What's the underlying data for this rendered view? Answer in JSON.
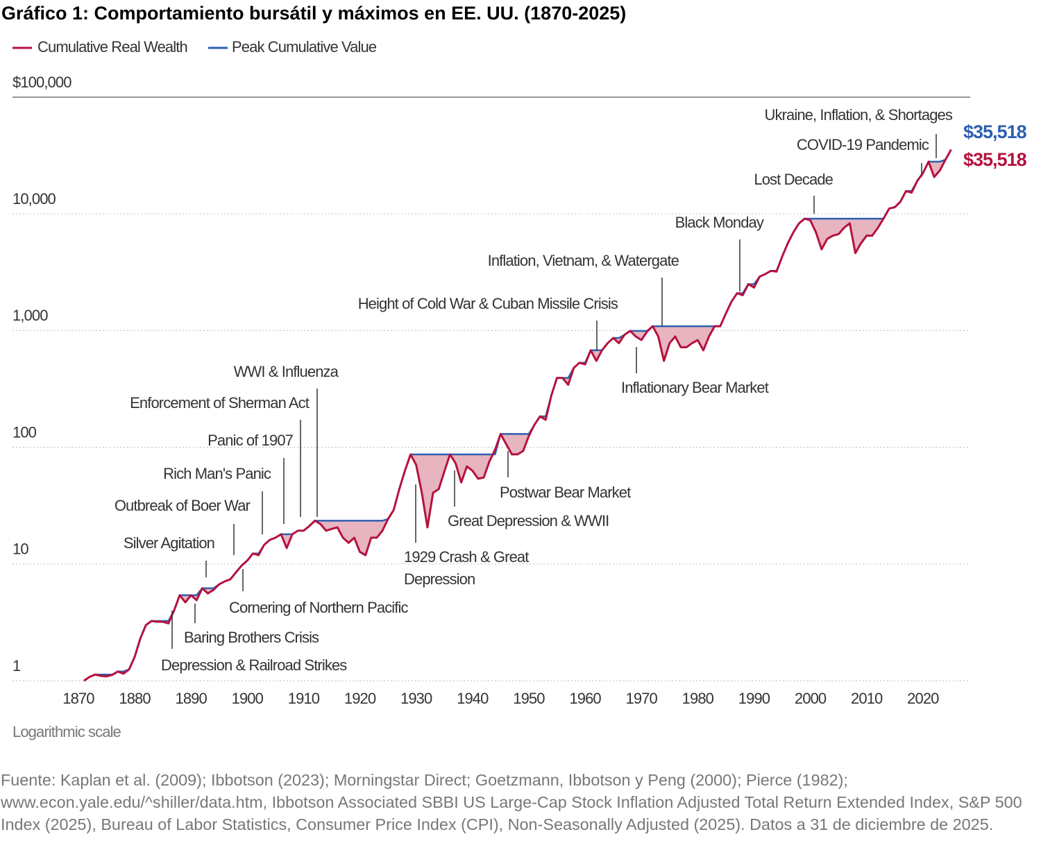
{
  "chart_data": {
    "type": "line",
    "title": "Gráfico 1: Comportamiento bursátil y máximos en EE. UU. (1870-2025)",
    "note": "Logarithmic scale",
    "source": "Fuente: Kaplan et al. (2009); Ibbotson (2023); Morningstar Direct; Goetzmann, Ibbotson y Peng (2000); Pierce (1982); www.econ.yale.edu/^shiller/data.htm, Ibbotson Associated SBBI US Large-Cap Stock Inflation Adjusted Total Return Extended Index, S&P 500 Index (2025), Bureau of Labor Statistics, Consumer Price Index (CPI), Non-Seasonally Adjusted (2025). Datos a 31 de diciembre de 2025.",
    "log_scale": true,
    "grid": true,
    "legend": "top-left",
    "fill_color": "#e7b4c0",
    "xlim": [
      1858.3,
      2028.4
    ],
    "xticks": [
      1870,
      1880,
      1890,
      1900,
      1910,
      1920,
      1930,
      1940,
      1950,
      1960,
      1970,
      1980,
      1990,
      2000,
      2010,
      2020
    ],
    "ylim": [
      1,
      100000
    ],
    "yticks": [
      1,
      10,
      100,
      {
        "value": 1000,
        "label": "1,000"
      },
      {
        "value": 10000,
        "label": "10,000"
      },
      {
        "value": 100000,
        "label": "$100,000"
      }
    ],
    "x": [
      1871,
      1872,
      1873,
      1874,
      1875,
      1876,
      1877,
      1878,
      1879,
      1880,
      1881,
      1882,
      1883,
      1884,
      1885,
      1886,
      1887,
      1888,
      1889,
      1890,
      1891,
      1892,
      1893,
      1894,
      1895,
      1896,
      1897,
      1898,
      1899,
      1900,
      1901,
      1902,
      1903,
      1904,
      1905,
      1906,
      1907,
      1908,
      1909,
      1910,
      1911,
      1912,
      1913,
      1914,
      1915,
      1916,
      1917,
      1918,
      1919,
      1920,
      1921,
      1922,
      1923,
      1924,
      1925,
      1926,
      1927,
      1928,
      1929,
      1930,
      1931,
      1932,
      1933,
      1934,
      1935,
      1936,
      1937,
      1938,
      1939,
      1940,
      1941,
      1942,
      1943,
      1944,
      1945,
      1946,
      1947,
      1948,
      1949,
      1950,
      1951,
      1952,
      1953,
      1954,
      1955,
      1956,
      1957,
      1958,
      1959,
      1960,
      1961,
      1962,
      1963,
      1964,
      1965,
      1966,
      1967,
      1968,
      1969,
      1970,
      1971,
      1972,
      1973,
      1974,
      1975,
      1976,
      1977,
      1978,
      1979,
      1980,
      1981,
      1982,
      1983,
      1984,
      1985,
      1986,
      1987,
      1988,
      1989,
      1990,
      1991,
      1992,
      1993,
      1994,
      1995,
      1996,
      1997,
      1998,
      1999,
      2000,
      2001,
      2002,
      2003,
      2004,
      2005,
      2006,
      2007,
      2008,
      2009,
      2010,
      2011,
      2012,
      2013,
      2014,
      2015,
      2016,
      2017,
      2018,
      2019,
      2020,
      2021,
      2022,
      2023,
      2024,
      2025
    ],
    "series": [
      {
        "name": "Peak Cumulative Value",
        "color": "#2d5fb0",
        "end_label": "$35,518",
        "values": [
          1.0,
          1.08,
          1.13,
          1.13,
          1.13,
          1.13,
          1.2,
          1.2,
          1.25,
          1.6,
          2.3,
          3.0,
          3.25,
          3.25,
          3.25,
          3.25,
          4.0,
          5.4,
          5.4,
          5.4,
          5.4,
          6.2,
          6.2,
          6.2,
          6.7,
          7.1,
          7.4,
          8.5,
          9.7,
          10.7,
          12.3,
          12.3,
          14.6,
          16.1,
          16.8,
          18.0,
          18.0,
          18.0,
          19.3,
          19.3,
          21.1,
          23.5,
          23.5,
          23.5,
          23.5,
          23.5,
          23.5,
          23.5,
          23.5,
          23.5,
          23.5,
          23.5,
          23.5,
          23.5,
          24.3,
          29,
          43.8,
          63,
          86.9,
          86.9,
          86.9,
          86.9,
          86.9,
          86.9,
          86.9,
          86.9,
          86.9,
          86.9,
          86.9,
          86.9,
          86.9,
          86.9,
          86.9,
          86.9,
          130,
          130,
          130,
          130,
          130,
          130,
          156,
          184,
          184,
          278,
          393,
          393,
          393,
          480,
          530,
          530,
          678,
          678,
          678,
          780,
          864,
          864,
          920,
          994,
          994,
          994,
          994,
          1090,
          1090,
          1090,
          1090,
          1090,
          1090,
          1090,
          1090,
          1090,
          1090,
          1090,
          1090,
          1090,
          1400,
          1770,
          2090,
          2090,
          2500,
          2500,
          2900,
          3050,
          3250,
          3250,
          4300,
          5600,
          6960,
          8300,
          9100,
          9100,
          9100,
          9100,
          9100,
          9100,
          9100,
          9100,
          9100,
          9100,
          9100,
          9100,
          9100,
          9100,
          9100,
          11100,
          11400,
          12700,
          15700,
          15700,
          19200,
          22300,
          28000,
          28000,
          28000,
          29100,
          35518
        ]
      },
      {
        "name": "Cumulative Real Wealth",
        "color": "#b5123e",
        "end_label": "$35,518",
        "values": [
          1.0,
          1.08,
          1.13,
          1.1,
          1.09,
          1.12,
          1.2,
          1.15,
          1.25,
          1.6,
          2.3,
          3.0,
          3.25,
          3.2,
          3.2,
          3.1,
          4.0,
          5.4,
          4.7,
          5.4,
          4.9,
          6.2,
          5.6,
          6.0,
          6.7,
          7.1,
          7.4,
          8.5,
          9.7,
          10.7,
          12.3,
          11.9,
          14.6,
          16.1,
          16.8,
          18.0,
          13.7,
          18.0,
          19.3,
          19.3,
          21.1,
          23.5,
          22.0,
          19.3,
          20.0,
          20.6,
          16.8,
          15.2,
          16.8,
          12.7,
          11.9,
          16.8,
          16.8,
          19.3,
          24.3,
          29,
          43.8,
          63,
          86.9,
          70.6,
          40.8,
          20.6,
          40.8,
          43.8,
          62,
          86.9,
          73,
          50,
          68.6,
          63,
          53.8,
          55.1,
          75.6,
          95.2,
          130,
          106,
          87,
          87,
          93,
          125,
          156,
          184,
          172,
          278,
          393,
          393,
          343,
          480,
          530,
          514,
          678,
          550,
          678,
          780,
          864,
          780,
          920,
          994,
          890,
          830,
          980,
          1090,
          890,
          550,
          780,
          890,
          720,
          720,
          780,
          830,
          678,
          890,
          1090,
          1090,
          1400,
          1770,
          2090,
          2010,
          2500,
          2340,
          2900,
          3050,
          3250,
          3200,
          4300,
          5600,
          6960,
          8300,
          9100,
          8800,
          6960,
          4970,
          6100,
          6500,
          6700,
          7600,
          8300,
          4610,
          5600,
          6500,
          6500,
          7600,
          9100,
          11100,
          11400,
          12700,
          15700,
          15200,
          19200,
          22300,
          28000,
          20700,
          23500,
          29100,
          35518
        ]
      }
    ],
    "annotations": [
      {
        "text": "Ukraine, Inflation, & Shortages"
      },
      {
        "text": "COVID-19 Pandemic"
      },
      {
        "text": "Lost Decade"
      },
      {
        "text": "Black Monday"
      },
      {
        "text": "Inflation, Vietnam, & Watergate"
      },
      {
        "text": "Height of Cold War & Cuban Missile Crisis"
      },
      {
        "text": "Inflationary Bear Market"
      },
      {
        "text": "WWI & Influenza"
      },
      {
        "text": "Enforcement of Sherman Act"
      },
      {
        "text": "Panic of 1907"
      },
      {
        "text": "Rich Man's Panic"
      },
      {
        "text": "Outbreak of Boer War"
      },
      {
        "text": "Silver Agitation"
      },
      {
        "text": "Cornering of Northern Pacific"
      },
      {
        "text": "Baring Brothers Crisis"
      },
      {
        "text": "Depression & Railroad Strikes"
      },
      {
        "text": "1929 Crash & Great"
      },
      {
        "text": "Depression"
      },
      {
        "text": "Great Depression & WWII"
      },
      {
        "text": "Postwar Bear Market"
      }
    ]
  }
}
